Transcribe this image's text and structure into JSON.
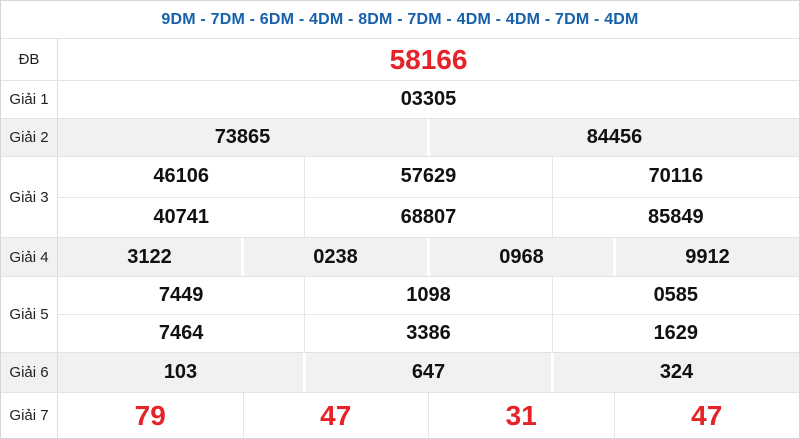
{
  "header": {
    "title": "9DM - 7DM - 6DM - 4DM - 8DM - 7DM - 4DM - 4DM - 7DM - 4DM"
  },
  "colors": {
    "accent_blue": "#1760ab",
    "accent_red": "#e62329",
    "row_alt_bg": "#f1f1f1",
    "border": "#e2e2e2"
  },
  "table": {
    "rows": [
      {
        "label": "ĐB",
        "highlight": true,
        "alt": false,
        "cells": [
          [
            "58166"
          ]
        ]
      },
      {
        "label": "Giải 1",
        "highlight": false,
        "alt": false,
        "cells": [
          [
            "03305"
          ]
        ]
      },
      {
        "label": "Giải 2",
        "highlight": false,
        "alt": true,
        "cells": [
          [
            "73865",
            "84456"
          ]
        ]
      },
      {
        "label": "Giải 3",
        "highlight": false,
        "alt": false,
        "cells": [
          [
            "46106",
            "57629",
            "70116"
          ],
          [
            "40741",
            "68807",
            "85849"
          ]
        ]
      },
      {
        "label": "Giải 4",
        "highlight": false,
        "alt": true,
        "cells": [
          [
            "3122",
            "0238",
            "0968",
            "9912"
          ]
        ]
      },
      {
        "label": "Giải 5",
        "highlight": false,
        "alt": false,
        "cells": [
          [
            "7449",
            "1098",
            "0585"
          ],
          [
            "7464",
            "3386",
            "1629"
          ]
        ]
      },
      {
        "label": "Giải 6",
        "highlight": false,
        "alt": true,
        "cells": [
          [
            "103",
            "647",
            "324"
          ]
        ]
      },
      {
        "label": "Giải 7",
        "highlight": true,
        "alt": false,
        "cells": [
          [
            "79",
            "47",
            "31",
            "47"
          ]
        ]
      }
    ]
  }
}
